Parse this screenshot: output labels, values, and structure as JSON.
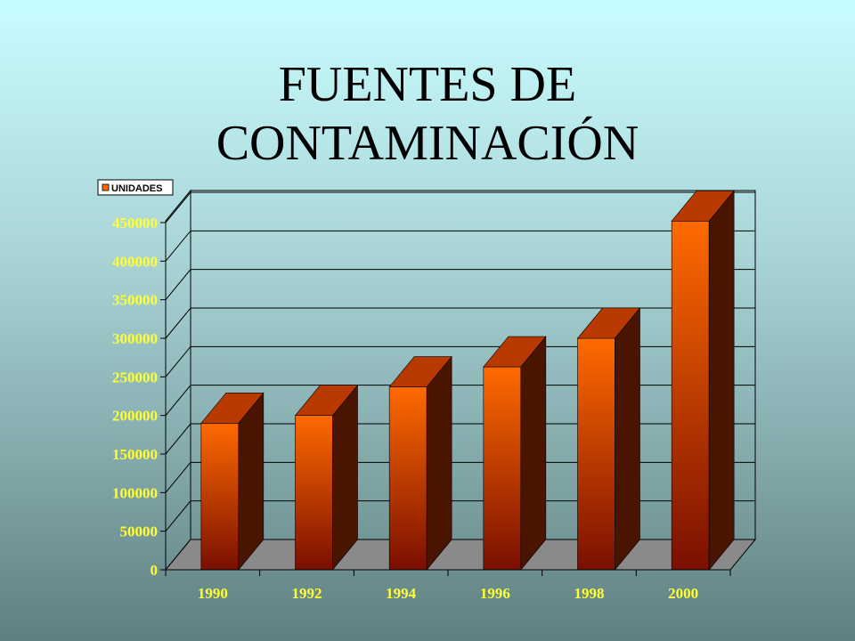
{
  "title": {
    "line1": "FUENTES DE",
    "line2": "CONTAMINACIÓN"
  },
  "colors": {
    "bar_front_top": "#ff6a00",
    "bar_front_bottom": "#7a0f00",
    "bar_side": "#4a1500",
    "bar_top": "#b83a00",
    "tick_y": "#ffff33",
    "tick_x": "#ffff33",
    "floor": "#8a8a8a"
  },
  "chart_data": {
    "type": "bar",
    "categories": [
      "1990",
      "1992",
      "1994",
      "1996",
      "1998",
      "2000"
    ],
    "series": [
      {
        "name": "UNIDADES",
        "values": [
          190000,
          200000,
          237000,
          263000,
          300000,
          452000
        ]
      }
    ],
    "yticks": [
      0,
      50000,
      100000,
      150000,
      200000,
      250000,
      300000,
      350000,
      400000,
      450000
    ],
    "ylim": [
      0,
      450000
    ],
    "grid": true,
    "legend": "top-left",
    "style": "3d"
  }
}
